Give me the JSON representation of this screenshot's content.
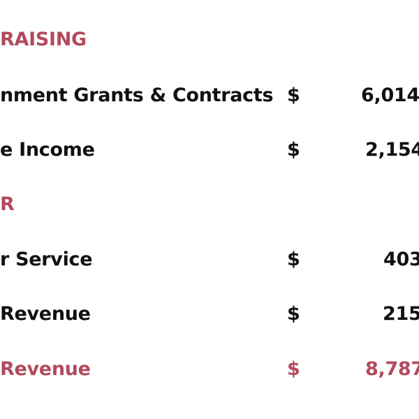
{
  "colors": {
    "accent": "#b24a5e",
    "text": "#111111",
    "background": "#ffffff"
  },
  "rows": [
    {
      "type": "heading",
      "label": "RAISING"
    },
    {
      "type": "item",
      "label": "nment Grants & Contracts",
      "currency": "$",
      "amount": "6,014,"
    },
    {
      "type": "item",
      "label": "e Income",
      "currency": "$",
      "amount": "2,154"
    },
    {
      "type": "heading",
      "label": "R"
    },
    {
      "type": "item",
      "label": "r Service",
      "currency": "$",
      "amount": "403"
    },
    {
      "type": "item",
      "label": "Revenue",
      "currency": "$",
      "amount": "215,"
    },
    {
      "type": "total",
      "label": "Revenue",
      "currency": "$",
      "amount": "8,787"
    }
  ]
}
